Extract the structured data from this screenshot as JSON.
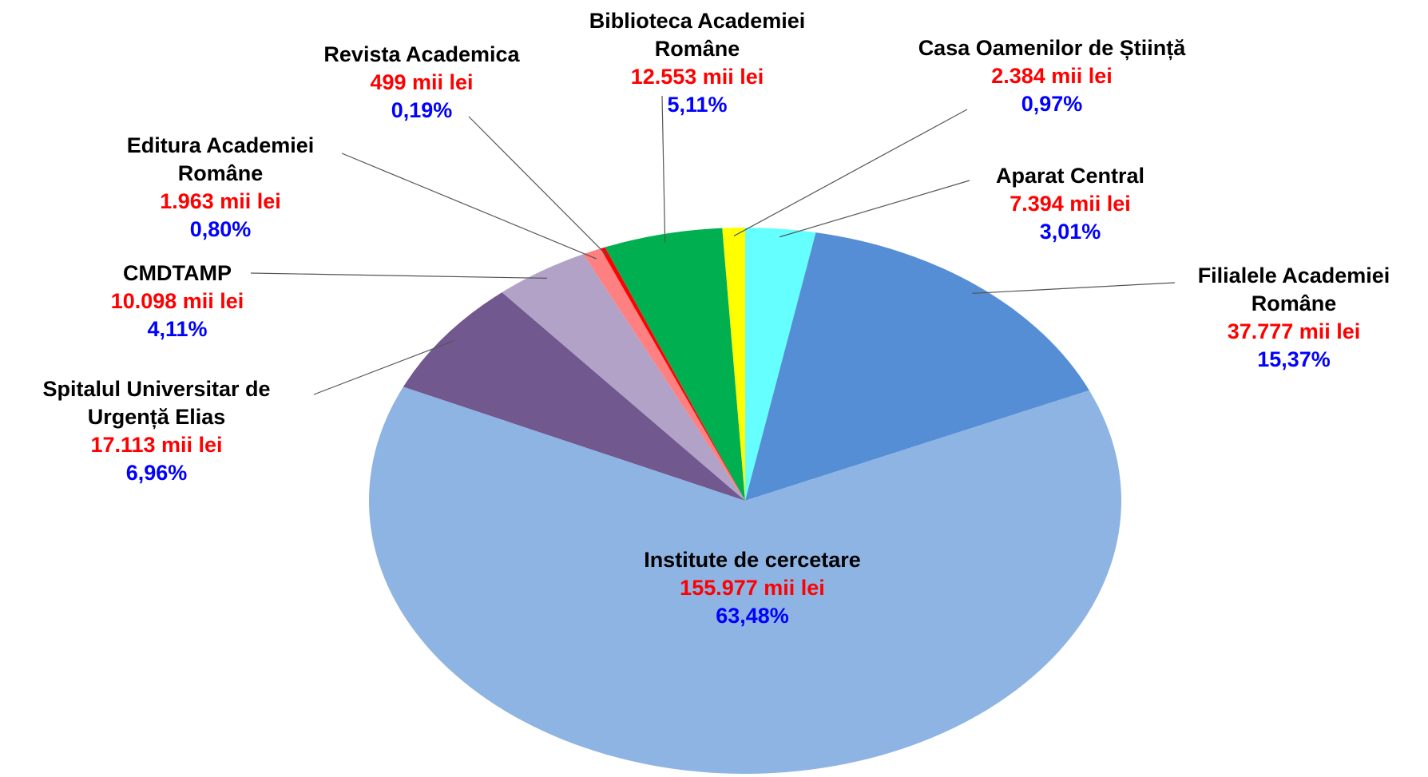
{
  "chart_data": {
    "type": "pie",
    "categories": [
      "Aparat Central",
      "Filialele Academiei Române",
      "Institute de cercetare",
      "Spitalul Universitar de Urgență Elias",
      "CMDTAMP",
      "Editura Academiei Române",
      "Revista Academica",
      "Biblioteca Academiei Române",
      "Casa Oamenilor de Știință"
    ],
    "values": [
      7394,
      37777,
      155977,
      17113,
      10098,
      1963,
      499,
      12553,
      2384
    ],
    "value_labels": [
      "7.394 mii lei",
      "37.777 mii lei",
      "155.977 mii lei",
      "17.113 mii lei",
      "10.098 mii lei",
      "1.963 mii lei",
      "499 mii lei",
      "12.553 mii lei",
      "2.384 mii lei"
    ],
    "percent_values": [
      3.01,
      15.37,
      63.48,
      6.96,
      4.11,
      0.8,
      0.19,
      5.11,
      0.97
    ],
    "percent_labels": [
      "3,01%",
      "15,37%",
      "63,48%",
      "6,96%",
      "4,11%",
      "0,80%",
      "0,19%",
      "5,11%",
      "0,97%"
    ],
    "colors": [
      "#66FFFF",
      "#558ED5",
      "#8EB4E3",
      "#71588F",
      "#B3A2C7",
      "#FF8080",
      "#FF0000",
      "#00B050",
      "#FFFF00"
    ]
  }
}
